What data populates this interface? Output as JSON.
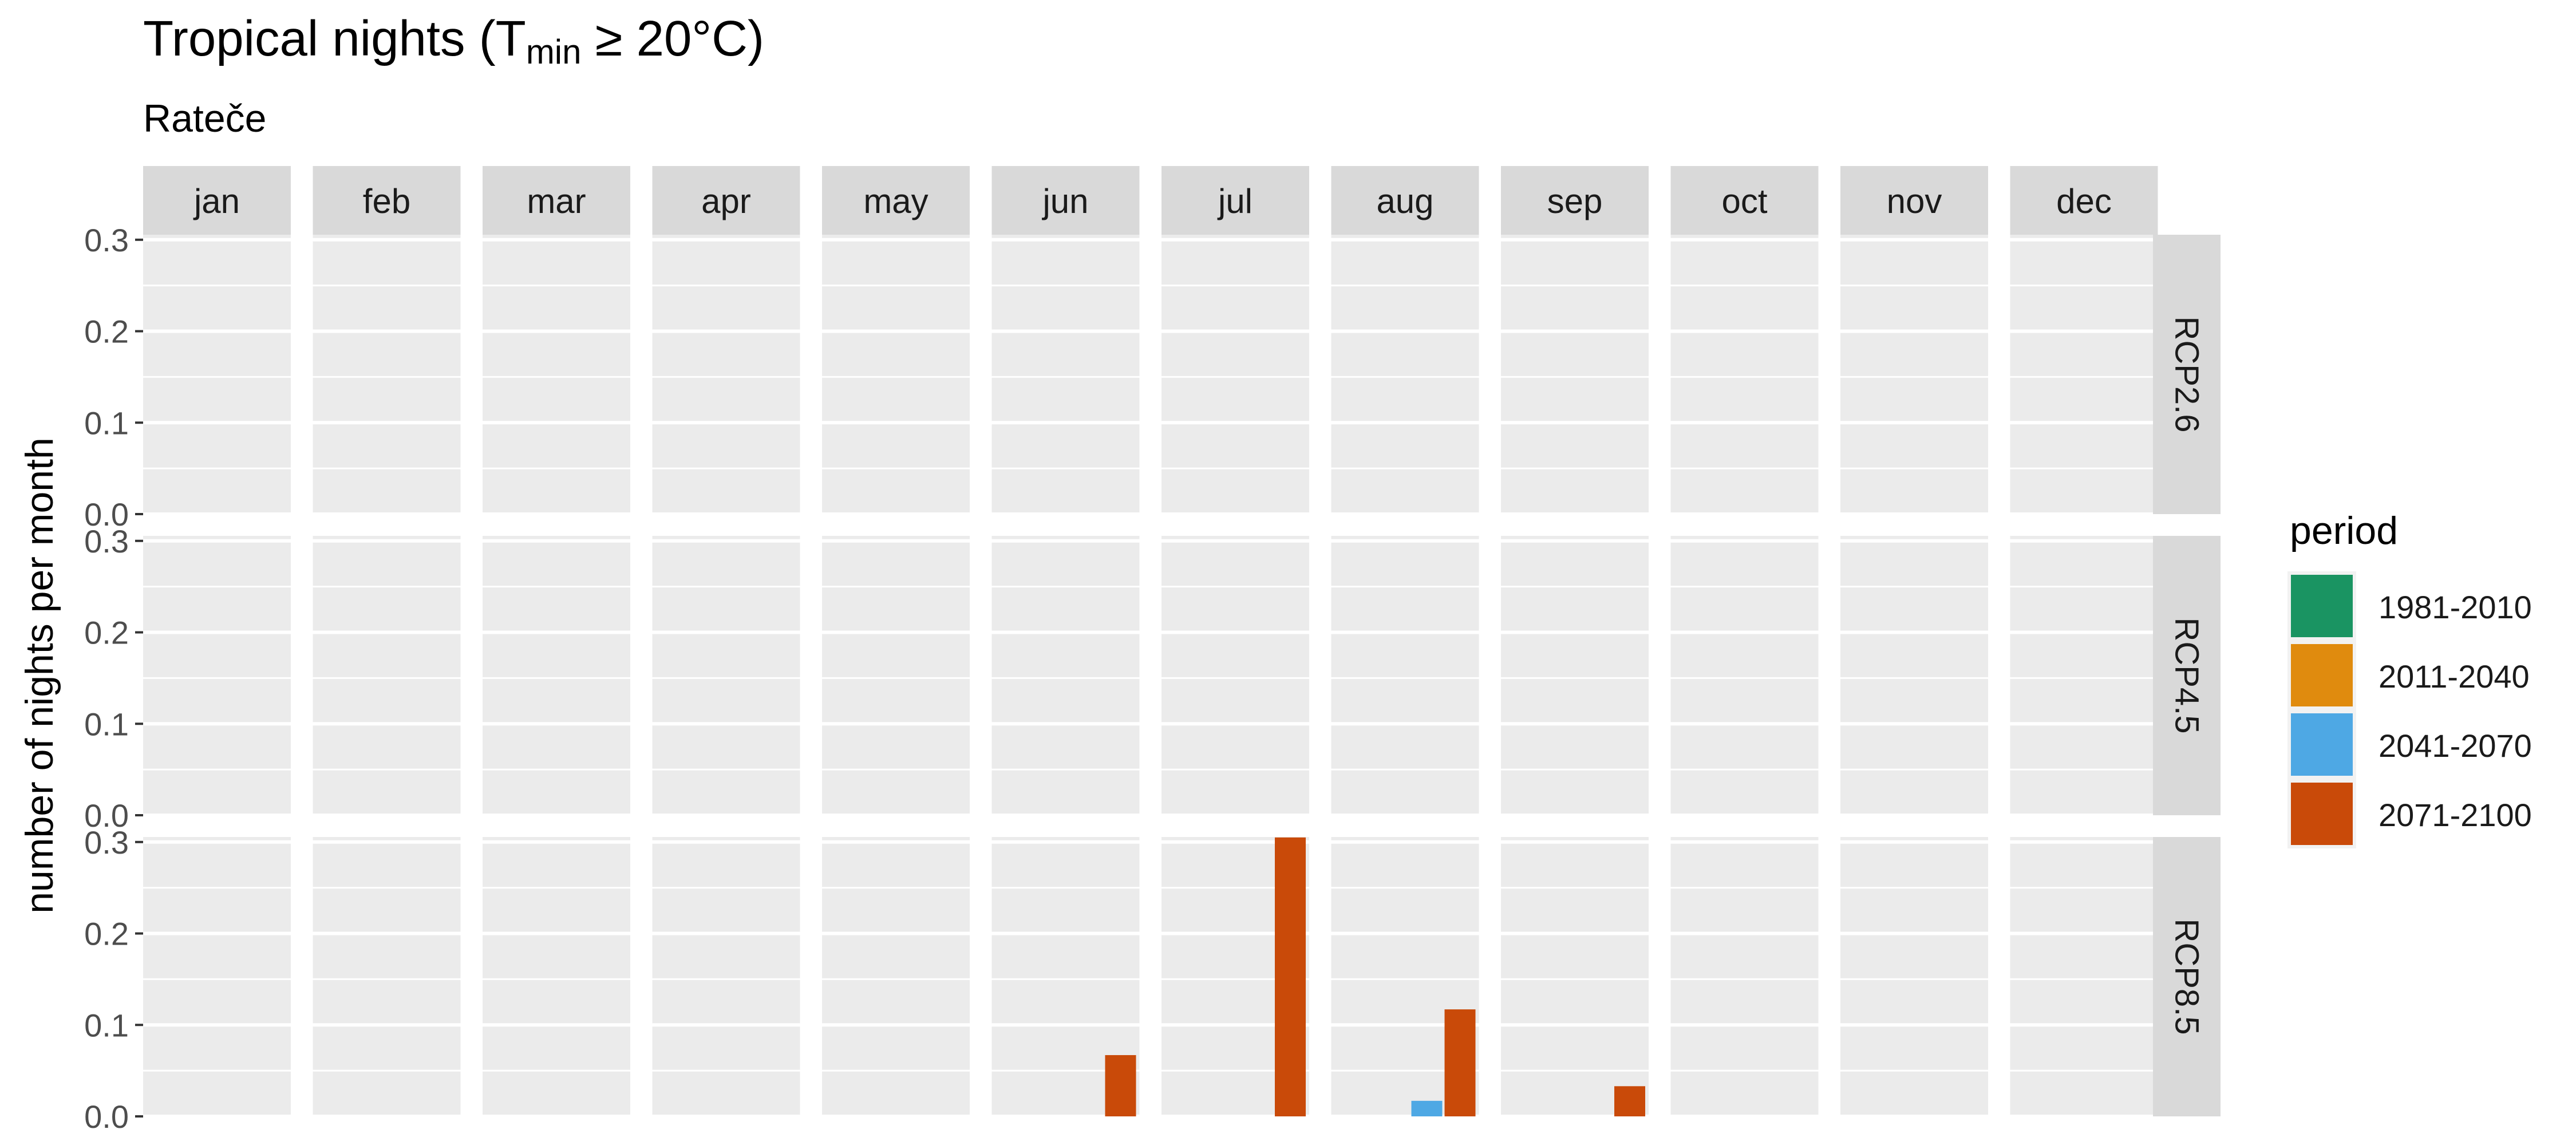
{
  "title_prefix": "Tropical nights (T",
  "title_sub": "min",
  "title_suffix": " ≥ 20°C)",
  "subtitle": "Rateče",
  "chart_data": {
    "type": "bar",
    "title": "Tropical nights (Tmin ≥ 20°C)",
    "subtitle": "Rateče",
    "xlabel": "",
    "ylabel": "number of nights per month",
    "months": [
      "jan",
      "feb",
      "mar",
      "apr",
      "may",
      "jun",
      "jul",
      "aug",
      "sep",
      "oct",
      "nov",
      "dec"
    ],
    "scenarios": [
      "RCP2.6",
      "RCP4.5",
      "RCP8.5"
    ],
    "ylim": [
      0,
      0.3
    ],
    "yticks": [
      "0.0",
      "0.1",
      "0.2",
      "0.3"
    ],
    "grid": true,
    "legend": {
      "title": "period",
      "position": "right",
      "entries": [
        {
          "name": "1981-2010",
          "color": "#1a9462"
        },
        {
          "name": "2011-2040",
          "color": "#e08b0e"
        },
        {
          "name": "2041-2070",
          "color": "#4ea8e4"
        },
        {
          "name": "2071-2100",
          "color": "#c94a09"
        }
      ]
    },
    "series": [
      {
        "scenario": "RCP2.6",
        "period": "1981-2010",
        "values": [
          0,
          0,
          0,
          0,
          0,
          0,
          0,
          0,
          0,
          0,
          0,
          0
        ]
      },
      {
        "scenario": "RCP2.6",
        "period": "2011-2040",
        "values": [
          0,
          0,
          0,
          0,
          0,
          0,
          0,
          0,
          0,
          0,
          0,
          0
        ]
      },
      {
        "scenario": "RCP2.6",
        "period": "2041-2070",
        "values": [
          0,
          0,
          0,
          0,
          0,
          0,
          0,
          0,
          0,
          0,
          0,
          0
        ]
      },
      {
        "scenario": "RCP2.6",
        "period": "2071-2100",
        "values": [
          0,
          0,
          0,
          0,
          0,
          0,
          0,
          0,
          0,
          0,
          0,
          0
        ]
      },
      {
        "scenario": "RCP4.5",
        "period": "1981-2010",
        "values": [
          0,
          0,
          0,
          0,
          0,
          0,
          0,
          0,
          0,
          0,
          0,
          0
        ]
      },
      {
        "scenario": "RCP4.5",
        "period": "2011-2040",
        "values": [
          0,
          0,
          0,
          0,
          0,
          0,
          0,
          0,
          0,
          0,
          0,
          0
        ]
      },
      {
        "scenario": "RCP4.5",
        "period": "2041-2070",
        "values": [
          0,
          0,
          0,
          0,
          0,
          0,
          0,
          0,
          0,
          0,
          0,
          0
        ]
      },
      {
        "scenario": "RCP4.5",
        "period": "2071-2100",
        "values": [
          0,
          0,
          0,
          0,
          0,
          0,
          0,
          0,
          0,
          0,
          0,
          0
        ]
      },
      {
        "scenario": "RCP8.5",
        "period": "1981-2010",
        "values": [
          0,
          0,
          0,
          0,
          0,
          0,
          0,
          0,
          0,
          0,
          0,
          0
        ]
      },
      {
        "scenario": "RCP8.5",
        "period": "2011-2040",
        "values": [
          0,
          0,
          0,
          0,
          0,
          0,
          0,
          0,
          0,
          0,
          0,
          0
        ]
      },
      {
        "scenario": "RCP8.5",
        "period": "2041-2070",
        "values": [
          0,
          0,
          0,
          0,
          0,
          0,
          0,
          0.017,
          0,
          0,
          0,
          0
        ]
      },
      {
        "scenario": "RCP8.5",
        "period": "2071-2100",
        "values": [
          0,
          0,
          0,
          0,
          0,
          0.067,
          0.305,
          0.117,
          0.033,
          0,
          0,
          0
        ]
      }
    ]
  }
}
